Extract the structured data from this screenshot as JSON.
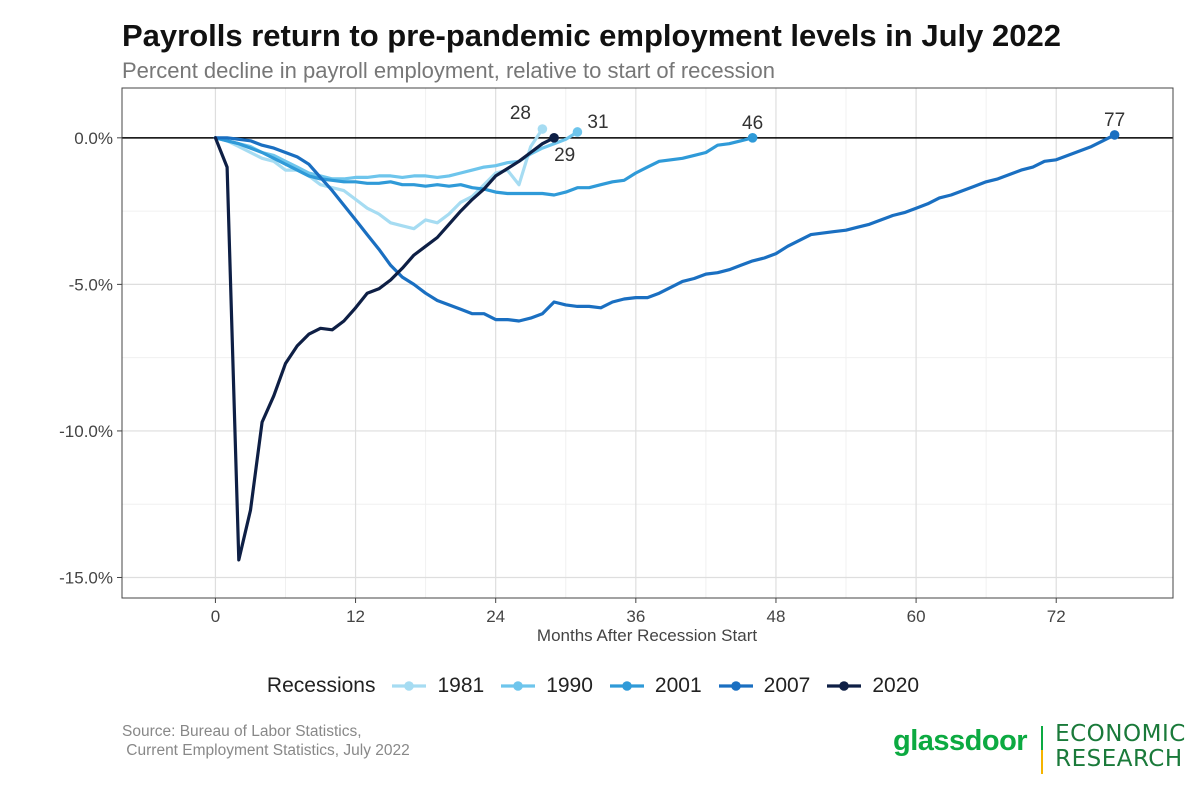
{
  "chart_data": {
    "type": "line",
    "title": "Payrolls return to pre-pandemic employment levels in July 2022",
    "subtitle": "Percent decline in payroll employment, relative to start of recession",
    "xlabel": "Months After Recession Start",
    "ylabel": "",
    "xlim": [
      -8,
      82
    ],
    "ylim": [
      -15.7,
      1.7
    ],
    "x_ticks": [
      0,
      12,
      24,
      36,
      48,
      60,
      72
    ],
    "x_tick_labels": [
      "0",
      "12",
      "24",
      "36",
      "48",
      "60",
      "72"
    ],
    "y_ticks": [
      0,
      -5,
      -10,
      -15
    ],
    "y_tick_labels": [
      "0.0%",
      "-5.0%",
      "-10.0%",
      "-15.0%"
    ],
    "grid": true,
    "legend_title": "Recessions",
    "legend_position": "bottom",
    "zero_line": true,
    "series": [
      {
        "name": "1981",
        "color": "#a6dcf2",
        "end_label": "28",
        "x": [
          0,
          1,
          2,
          3,
          4,
          5,
          6,
          7,
          8,
          9,
          10,
          11,
          12,
          13,
          14,
          15,
          16,
          17,
          18,
          19,
          20,
          21,
          22,
          23,
          24,
          25,
          26,
          27,
          28
        ],
        "y": [
          0,
          -0.1,
          -0.3,
          -0.5,
          -0.7,
          -0.8,
          -1.1,
          -1.1,
          -1.3,
          -1.6,
          -1.7,
          -1.8,
          -2.1,
          -2.4,
          -2.6,
          -2.9,
          -3.0,
          -3.1,
          -2.8,
          -2.9,
          -2.6,
          -2.2,
          -2.0,
          -1.6,
          -1.2,
          -1.1,
          -1.6,
          -0.3,
          0.3
        ]
      },
      {
        "name": "1990",
        "color": "#6ec5ec",
        "end_label": "31",
        "x": [
          0,
          1,
          2,
          3,
          4,
          5,
          6,
          7,
          8,
          9,
          10,
          11,
          12,
          13,
          14,
          15,
          16,
          17,
          18,
          19,
          20,
          21,
          22,
          23,
          24,
          25,
          26,
          27,
          28,
          29,
          30,
          31
        ],
        "y": [
          0,
          -0.1,
          -0.2,
          -0.3,
          -0.5,
          -0.6,
          -0.8,
          -1.0,
          -1.2,
          -1.3,
          -1.4,
          -1.4,
          -1.35,
          -1.35,
          -1.3,
          -1.3,
          -1.35,
          -1.3,
          -1.3,
          -1.35,
          -1.3,
          -1.2,
          -1.1,
          -1.0,
          -0.95,
          -0.85,
          -0.8,
          -0.55,
          -0.35,
          -0.2,
          -0.05,
          0.2
        ]
      },
      {
        "name": "2001",
        "color": "#2f9ad8",
        "end_label": "46",
        "x": [
          0,
          1,
          2,
          3,
          4,
          5,
          6,
          7,
          8,
          9,
          10,
          11,
          12,
          13,
          14,
          15,
          16,
          17,
          18,
          19,
          20,
          21,
          22,
          23,
          24,
          25,
          26,
          27,
          28,
          29,
          30,
          31,
          32,
          33,
          34,
          35,
          36,
          37,
          38,
          39,
          40,
          41,
          42,
          43,
          44,
          45,
          46
        ],
        "y": [
          0,
          -0.1,
          -0.2,
          -0.35,
          -0.5,
          -0.7,
          -0.9,
          -1.1,
          -1.3,
          -1.4,
          -1.45,
          -1.5,
          -1.5,
          -1.55,
          -1.55,
          -1.5,
          -1.6,
          -1.6,
          -1.65,
          -1.6,
          -1.65,
          -1.6,
          -1.7,
          -1.75,
          -1.85,
          -1.9,
          -1.9,
          -1.9,
          -1.9,
          -1.95,
          -1.85,
          -1.7,
          -1.7,
          -1.6,
          -1.5,
          -1.45,
          -1.2,
          -1.0,
          -0.8,
          -0.75,
          -0.7,
          -0.6,
          -0.5,
          -0.25,
          -0.2,
          -0.1,
          0
        ]
      },
      {
        "name": "2007",
        "color": "#1a6fc1",
        "end_label": "77",
        "x": [
          0,
          1,
          2,
          3,
          4,
          5,
          6,
          7,
          8,
          9,
          10,
          11,
          12,
          13,
          14,
          15,
          16,
          17,
          18,
          19,
          20,
          21,
          22,
          23,
          24,
          25,
          26,
          27,
          28,
          29,
          30,
          31,
          32,
          33,
          34,
          35,
          36,
          37,
          38,
          39,
          40,
          41,
          42,
          43,
          44,
          45,
          46,
          47,
          48,
          49,
          50,
          51,
          52,
          53,
          54,
          55,
          56,
          57,
          58,
          59,
          60,
          61,
          62,
          63,
          64,
          65,
          66,
          67,
          68,
          69,
          70,
          71,
          72,
          73,
          74,
          75,
          76,
          77
        ],
        "y": [
          0,
          0,
          -0.05,
          -0.1,
          -0.25,
          -0.35,
          -0.5,
          -0.65,
          -0.9,
          -1.35,
          -1.8,
          -2.3,
          -2.8,
          -3.3,
          -3.8,
          -4.35,
          -4.75,
          -5.0,
          -5.3,
          -5.55,
          -5.7,
          -5.85,
          -6.0,
          -6.0,
          -6.2,
          -6.2,
          -6.25,
          -6.15,
          -6.0,
          -5.6,
          -5.7,
          -5.75,
          -5.75,
          -5.8,
          -5.6,
          -5.5,
          -5.45,
          -5.45,
          -5.3,
          -5.1,
          -4.9,
          -4.8,
          -4.65,
          -4.6,
          -4.5,
          -4.35,
          -4.2,
          -4.1,
          -3.95,
          -3.7,
          -3.5,
          -3.3,
          -3.25,
          -3.2,
          -3.15,
          -3.05,
          -2.95,
          -2.8,
          -2.65,
          -2.55,
          -2.4,
          -2.25,
          -2.05,
          -1.95,
          -1.8,
          -1.65,
          -1.5,
          -1.4,
          -1.25,
          -1.1,
          -1.0,
          -0.8,
          -0.75,
          -0.6,
          -0.45,
          -0.3,
          -0.1,
          0.1
        ]
      },
      {
        "name": "2020",
        "color": "#0e1f45",
        "end_label": "29",
        "x": [
          0,
          1,
          2,
          3,
          4,
          5,
          6,
          7,
          8,
          9,
          10,
          11,
          12,
          13,
          14,
          15,
          16,
          17,
          18,
          19,
          20,
          21,
          22,
          23,
          24,
          25,
          26,
          27,
          28,
          29
        ],
        "y": [
          0,
          -1.0,
          -14.4,
          -12.7,
          -9.7,
          -8.8,
          -7.7,
          -7.1,
          -6.7,
          -6.5,
          -6.55,
          -6.25,
          -5.8,
          -5.3,
          -5.15,
          -4.85,
          -4.45,
          -4.0,
          -3.7,
          -3.4,
          -2.95,
          -2.5,
          -2.1,
          -1.75,
          -1.3,
          -1.05,
          -0.8,
          -0.5,
          -0.2,
          0.0
        ]
      }
    ]
  },
  "source_text": "Source: Bureau of Labor Statistics,\n Current Employment Statistics, July 2022",
  "brand": {
    "name": "glassdoor",
    "sub_line1": "ECONOMIC",
    "sub_line2": "RESEARCH"
  }
}
